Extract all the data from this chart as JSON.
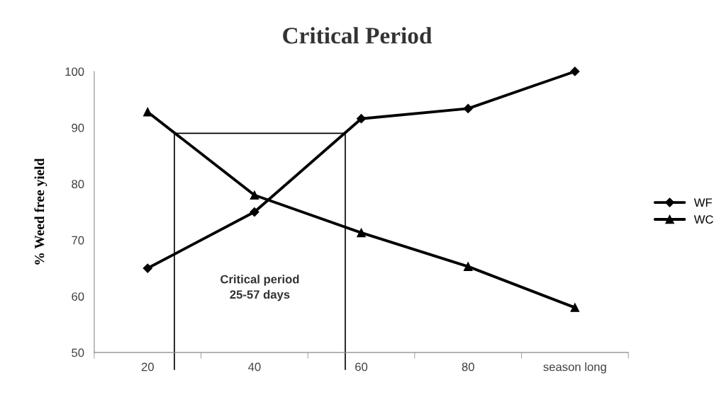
{
  "chart_data": {
    "type": "line",
    "title": "Critical Period",
    "ylabel": "% Weed free yield",
    "x": [
      20,
      40,
      60,
      80,
      100
    ],
    "series": [
      {
        "name": "WF",
        "color": "#000000",
        "marker": "diamond",
        "values": [
          65,
          75,
          91.6,
          93.4,
          100
        ]
      },
      {
        "name": "WC",
        "color": "#000000",
        "marker": "triangle",
        "values": [
          92.8,
          78,
          71.3,
          65.3,
          58
        ]
      }
    ],
    "xlim": [
      10,
      110
    ],
    "xticks": [
      {
        "value": 10,
        "label": null
      },
      20,
      {
        "value": 30,
        "label": null
      },
      40,
      {
        "value": 50,
        "label": null
      },
      60,
      {
        "value": 70,
        "label": null
      },
      80,
      {
        "value": 90,
        "label": null
      },
      {
        "value": 100,
        "label": "season long"
      },
      {
        "value": 110,
        "label": null
      }
    ],
    "ylim": [
      50,
      100
    ],
    "yticks": [
      50,
      60,
      70,
      80,
      90,
      100
    ],
    "ref_lines": [
      {
        "axis": "x",
        "value": 25,
        "color": "#000000"
      },
      {
        "axis": "x",
        "value": 57,
        "color": "#000000"
      },
      {
        "axis": "y",
        "value": 89,
        "color": "#000000"
      }
    ],
    "annotations": [
      "Critical period\n25-57 days"
    ],
    "legend": "right",
    "grid": false,
    "line_style": "solid"
  }
}
